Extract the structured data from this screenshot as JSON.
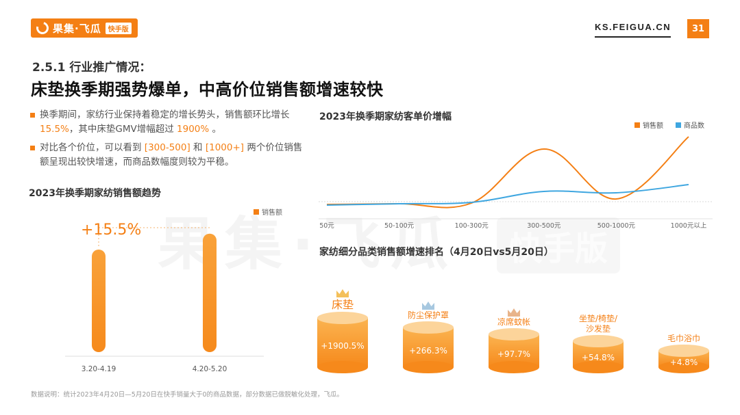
{
  "header": {
    "logo_text": "果集·飞瓜",
    "logo_badge": "快手版",
    "site": "KS.FEIGUA.CN",
    "page_number": "31"
  },
  "section": {
    "subtitle": "2.5.1 行业推广情况：",
    "title": "床垫换季期强势爆单，中高价位销售额增速较快"
  },
  "bullets": [
    {
      "parts": [
        {
          "text": "换季期间，家纺行业保持着稳定的增长势头，销售额环比增长 ",
          "hl": false
        },
        {
          "text": "15.5%",
          "hl": true
        },
        {
          "text": "，其中床垫GMV增幅超过 ",
          "hl": false
        },
        {
          "text": "1900%",
          "hl": true
        },
        {
          "text": " 。",
          "hl": false
        }
      ]
    },
    {
      "parts": [
        {
          "text": "对比各个价位，可以看到 ",
          "hl": false
        },
        {
          "text": "[300-500]",
          "hl": true
        },
        {
          "text": " 和 ",
          "hl": false
        },
        {
          "text": "[1000+]",
          "hl": true
        },
        {
          "text": " 两个价位销售额呈现出较快增速，而商品数幅度则较为平稳。",
          "hl": false
        }
      ]
    }
  ],
  "watermark": {
    "text": "果集·飞瓜",
    "badge": "快手版"
  },
  "footnote": "数据说明：统计2023年4月20日—5月20日在快手销量大于0的商品数据，部分数据已做脱敏化处理，飞瓜。",
  "colors": {
    "accent": "#f47f14",
    "blue": "#3ea6e0"
  },
  "chart_data": [
    {
      "type": "bar",
      "title": "2023年换季期家纺销售额趋势",
      "categories": [
        "3.20-4.19",
        "4.20-5.20"
      ],
      "series": [
        {
          "name": "销售额",
          "values": [
            100,
            115.5
          ]
        }
      ],
      "annotation": "+15.5%",
      "ylim": [
        0,
        120
      ],
      "legend": "top-right",
      "grid": false
    },
    {
      "type": "line",
      "title": "2023年换季期家纺客单价增幅",
      "categories": [
        "50元",
        "50-100元",
        "100-300元",
        "300-500元",
        "500-1000元",
        "1000元以上"
      ],
      "series": [
        {
          "name": "销售额",
          "color": "#f47f14",
          "values": [
            1,
            2,
            3,
            82,
            9,
            100
          ]
        },
        {
          "name": "商品数",
          "color": "#3ea6e0",
          "values": [
            0,
            2,
            4,
            20,
            18,
            30
          ]
        }
      ],
      "ylim": [
        -10,
        110
      ],
      "legend": "top-right",
      "grid": false
    },
    {
      "type": "bar",
      "title": "家纺细分品类销售额增速排名（4月20日vs5月20日）",
      "categories": [
        "床垫",
        "防尘保护罩",
        "凉席蚊帐",
        "坐垫/椅垫/沙发垫",
        "毛巾浴巾"
      ],
      "category_lines": [
        [
          "床垫"
        ],
        [
          "防尘保护罩"
        ],
        [
          "凉席蚊帐"
        ],
        [
          "坐垫/椅垫/",
          "沙发垫"
        ],
        [
          "毛巾浴巾"
        ]
      ],
      "values": [
        1900.5,
        266.3,
        97.7,
        54.8,
        4.8
      ],
      "labels": [
        "+1900.5%",
        "+266.3%",
        "+97.7%",
        "+54.8%",
        "+4.8%"
      ],
      "crowns": [
        "gold",
        "silver",
        "bronze",
        "none",
        "none"
      ]
    }
  ]
}
